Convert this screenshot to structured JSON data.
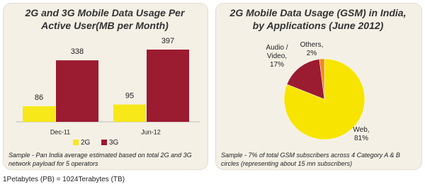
{
  "chart_data": [
    {
      "type": "bar",
      "title": "2G and 3G Mobile Data Usage Per Active User(MB per Month)",
      "categories": [
        "Dec-11",
        "Jun-12"
      ],
      "series": [
        {
          "name": "2G",
          "color": "#f7e81a",
          "values": [
            86,
            95
          ]
        },
        {
          "name": "3G",
          "color": "#9b1b30",
          "values": [
            338,
            397
          ]
        }
      ],
      "note": "Sample - Pan India average estimated based on total 2G and 3G network payload for 5 operators"
    },
    {
      "type": "pie",
      "title": "2G Mobile Data Usage (GSM) in India, by Applications (June 2012)",
      "values": [
        81,
        17,
        2
      ],
      "value_labels": [
        "Web, 81%",
        "Audio / Video, 17%",
        "Others, 2%"
      ],
      "colors": [
        "#f7e400",
        "#9b1b30",
        "#f08a1e"
      ],
      "note": "Sample - 7% of total GSM subscribers across 4 Category A & B circles (representing about 15 mn subscribers)"
    }
  ],
  "footer": "1Petabytes (PB) = 1024Terabytes (TB)"
}
